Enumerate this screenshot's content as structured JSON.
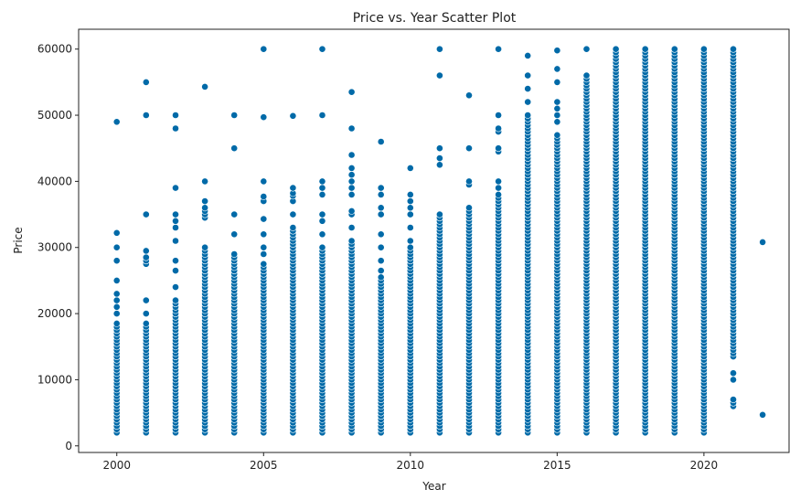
{
  "chart_data": {
    "type": "scatter",
    "title": "Price vs. Year Scatter Plot",
    "xlabel": "Year",
    "ylabel": "Price",
    "xlim": [
      1998.7,
      2022.9
    ],
    "ylim": [
      -1000,
      63000
    ],
    "xticks": [
      2000,
      2005,
      2010,
      2015,
      2020
    ],
    "yticks": [
      0,
      10000,
      20000,
      30000,
      40000,
      50000,
      60000
    ],
    "xtick_labels": [
      "2000",
      "2005",
      "2010",
      "2015",
      "2020"
    ],
    "ytick_labels": [
      "0",
      "10000",
      "20000",
      "30000",
      "40000",
      "50000",
      "60000"
    ],
    "grid": false,
    "legend": "none",
    "marker_color": "#006aa8",
    "marker_edge_color": "#ffffff",
    "series": [
      {
        "columns": [
          {
            "x": 2000,
            "dense_range": [
              2000,
              18500
            ],
            "points": [
              20000,
              21000,
              22000,
              23000,
              25000,
              28000,
              30000,
              32200,
              49000
            ]
          },
          {
            "x": 2001,
            "dense_range": [
              2000,
              18500
            ],
            "points": [
              20000,
              22000,
              27500,
              28000,
              28500,
              29500,
              35000,
              50000,
              55000
            ]
          },
          {
            "x": 2002,
            "dense_range": [
              2000,
              22000
            ],
            "points": [
              24000,
              26500,
              28000,
              31000,
              33000,
              34000,
              35000,
              39000,
              48000,
              50000
            ]
          },
          {
            "x": 2003,
            "dense_range": [
              2000,
              30000
            ],
            "points": [
              34500,
              35000,
              35500,
              36000,
              37000,
              40000,
              54300
            ]
          },
          {
            "x": 2004,
            "dense_range": [
              2000,
              29000
            ],
            "points": [
              32000,
              35000,
              45000,
              50000
            ]
          },
          {
            "x": 2005,
            "dense_range": [
              2000,
              27500
            ],
            "points": [
              29000,
              30000,
              32000,
              34300,
              37000,
              37700,
              40000,
              49700,
              60000
            ]
          },
          {
            "x": 2006,
            "dense_range": [
              2000,
              33000
            ],
            "points": [
              35000,
              37000,
              37800,
              38200,
              39000,
              49900
            ]
          },
          {
            "x": 2007,
            "dense_range": [
              2000,
              30000
            ],
            "points": [
              32000,
              34000,
              35000,
              38000,
              39000,
              40000,
              50000,
              60000
            ]
          },
          {
            "x": 2008,
            "dense_range": [
              2000,
              31000
            ],
            "points": [
              33000,
              35000,
              35500,
              38000,
              39000,
              40000,
              41000,
              42000,
              44000,
              48000,
              53500
            ]
          },
          {
            "x": 2009,
            "dense_range": [
              2000,
              25500
            ],
            "points": [
              26500,
              28000,
              30000,
              32000,
              35000,
              36000,
              38000,
              39000,
              46000
            ]
          },
          {
            "x": 2010,
            "dense_range": [
              2000,
              30000
            ],
            "points": [
              31000,
              33000,
              35000,
              36000,
              37000,
              38000,
              42000
            ]
          },
          {
            "x": 2011,
            "dense_range": [
              2000,
              35000
            ],
            "points": [
              42500,
              43500,
              45000,
              56000,
              60000
            ]
          },
          {
            "x": 2012,
            "dense_range": [
              2000,
              36000
            ],
            "points": [
              39500,
              40000,
              45000,
              53000
            ]
          },
          {
            "x": 2013,
            "dense_range": [
              2000,
              38000
            ],
            "points": [
              39000,
              40000,
              44500,
              45000,
              47500,
              48000,
              50000,
              60000
            ]
          },
          {
            "x": 2014,
            "dense_range": [
              2000,
              50000
            ],
            "points": [
              52000,
              54000,
              56000,
              59000
            ]
          },
          {
            "x": 2015,
            "dense_range": [
              2000,
              47000
            ],
            "points": [
              49000,
              50000,
              51000,
              52000,
              55000,
              57000,
              59800
            ]
          },
          {
            "x": 2016,
            "dense_range": [
              2000,
              56000
            ],
            "points": [
              60000
            ]
          },
          {
            "x": 2017,
            "dense_range": [
              2000,
              60000
            ],
            "points": []
          },
          {
            "x": 2018,
            "dense_range": [
              2000,
              60000
            ],
            "points": []
          },
          {
            "x": 2019,
            "dense_range": [
              2000,
              60000
            ],
            "points": []
          },
          {
            "x": 2020,
            "dense_range": [
              2000,
              60000
            ],
            "points": []
          },
          {
            "x": 2021,
            "dense_range": [
              13500,
              60000
            ],
            "points": [
              6000,
              6500,
              7000,
              10000,
              11000
            ]
          },
          {
            "x": 2022,
            "dense_range": null,
            "points": [
              4700,
              30800
            ]
          }
        ]
      }
    ]
  }
}
